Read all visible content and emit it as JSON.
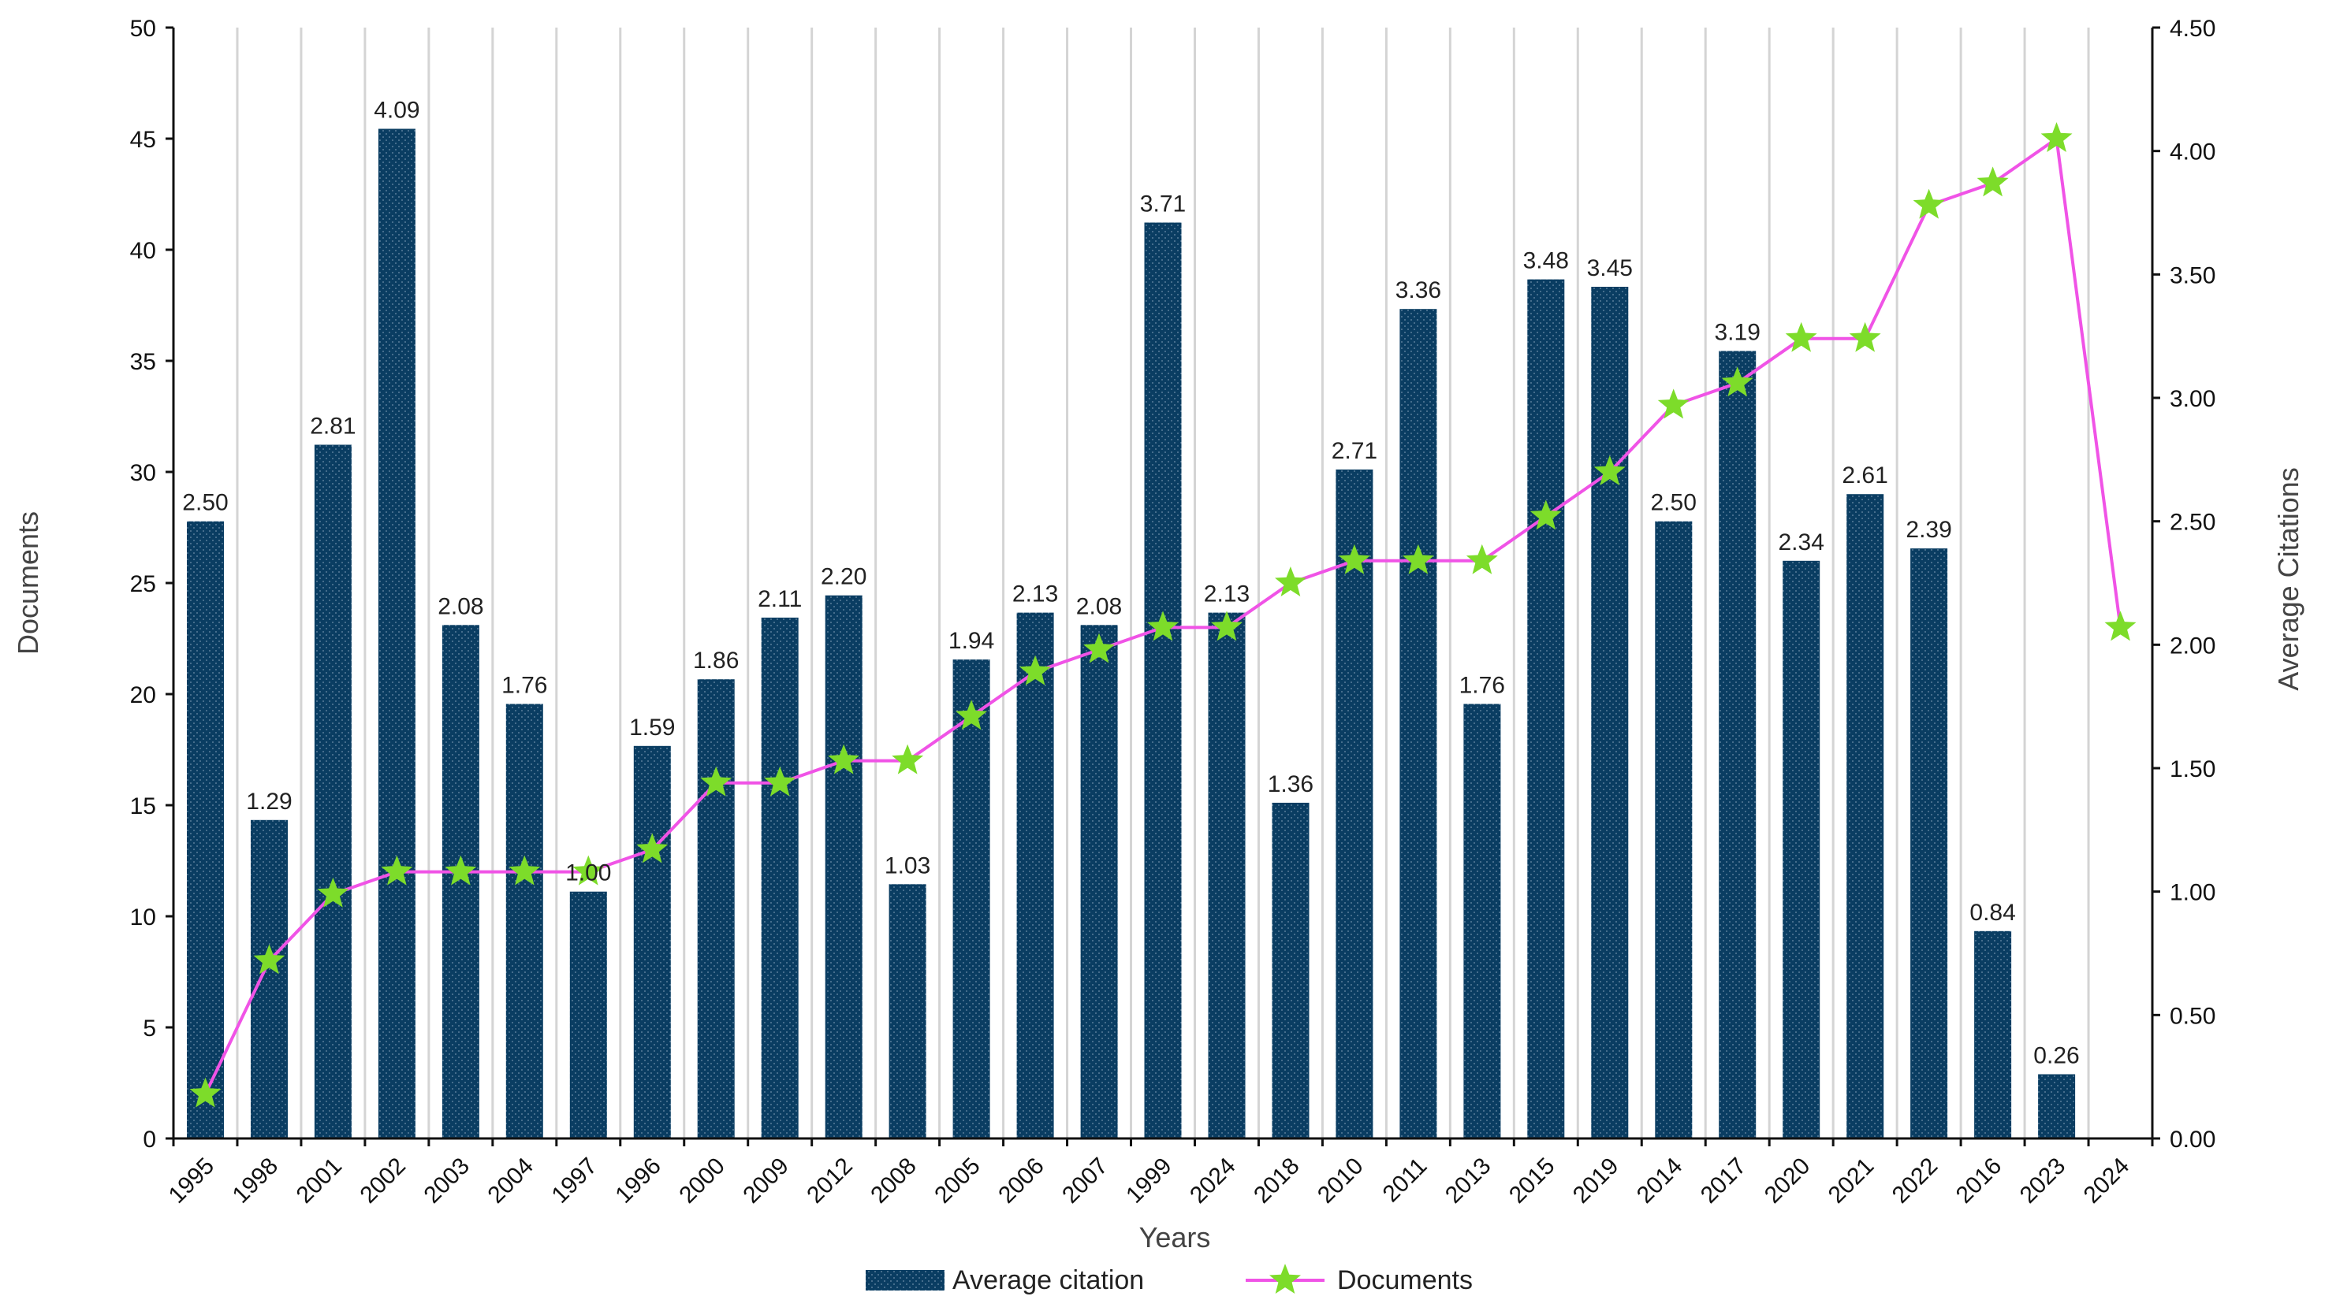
{
  "chart_data": {
    "type": "bar",
    "categories": [
      "1995",
      "1998",
      "2001",
      "2002",
      "2003",
      "2004",
      "1997",
      "1996",
      "2000",
      "2009",
      "2012",
      "2008",
      "2005",
      "2006",
      "2007",
      "1999",
      "2024",
      "2018",
      "2010",
      "2011",
      "2013",
      "2015",
      "2019",
      "2014",
      "2017",
      "2020",
      "2021",
      "2022",
      "2016",
      "2023",
      "2024"
    ],
    "series": [
      {
        "name": "Average citation",
        "kind": "bar",
        "axis": "right",
        "color": "#0a3d62",
        "values": [
          2.5,
          1.29,
          2.81,
          4.09,
          2.08,
          1.76,
          1.0,
          1.59,
          1.86,
          2.11,
          2.2,
          1.03,
          1.94,
          2.13,
          2.08,
          3.71,
          2.13,
          1.36,
          2.71,
          3.36,
          1.76,
          3.48,
          3.45,
          2.5,
          3.19,
          2.34,
          2.61,
          2.39,
          0.84,
          0.26,
          null
        ],
        "labels": [
          "2.50",
          "1.29",
          "2.81",
          "4.09",
          "2.08",
          "1.76",
          "1.00",
          "1.59",
          "1.86",
          "2.11",
          "2.20",
          "1.03",
          "1.94",
          "2.13",
          "2.08",
          "3.71",
          "2.13",
          "1.36",
          "2.71",
          "3.36",
          "1.76",
          "3.48",
          "3.45",
          "2.50",
          "3.19",
          "2.34",
          "2.61",
          "2.39",
          "0.84",
          "0.26",
          ""
        ]
      },
      {
        "name": "Documents",
        "kind": "line",
        "axis": "left",
        "color": "#f053e6",
        "marker_color": "#7ddc2a",
        "marker": "star",
        "values": [
          2,
          8,
          11,
          12,
          12,
          12,
          12,
          13,
          16,
          16,
          17,
          17,
          19,
          21,
          22,
          23,
          23,
          25,
          26,
          26,
          26,
          28,
          30,
          33,
          34,
          36,
          36,
          42,
          43,
          45,
          23
        ]
      }
    ],
    "xlabel": "Years",
    "ylabel_left": "Documents",
    "ylabel_right": "Average Citations",
    "ylim_left": [
      0,
      50
    ],
    "ylim_right": [
      0,
      4.5
    ],
    "yticks_left": [
      "0",
      "5",
      "10",
      "15",
      "20",
      "25",
      "30",
      "35",
      "40",
      "45",
      "50"
    ],
    "yticks_right": [
      "0.00",
      "0.50",
      "1.00",
      "1.50",
      "2.00",
      "2.50",
      "3.00",
      "3.50",
      "4.00",
      "4.50"
    ],
    "grid": "vertical",
    "legend": "bottom",
    "colors": {
      "gridline": "#d4d4d4",
      "axis": "#111111"
    }
  }
}
